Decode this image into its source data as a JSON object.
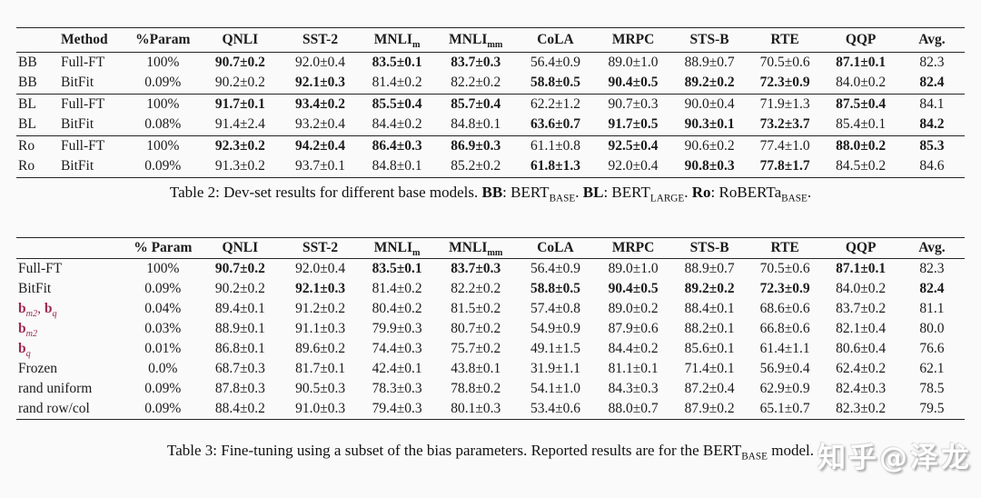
{
  "accent_red": "#9d2b52",
  "page_background": "#fafafa",
  "rule_color": "#242424",
  "watermark": {
    "text": "知乎@泽龙",
    "color": "#ffffff"
  },
  "table2": {
    "caption_parts": [
      {
        "t": "Table 2:  Dev-set results for different base models. "
      },
      {
        "t": "BB",
        "b": 1
      },
      {
        "t": ": BERT"
      },
      {
        "t": "BASE",
        "sub": 1
      },
      {
        "t": ". "
      },
      {
        "t": "BL",
        "b": 1
      },
      {
        "t": ": BERT"
      },
      {
        "t": "LARGE",
        "sub": 1
      },
      {
        "t": ". "
      },
      {
        "t": "Ro",
        "b": 1
      },
      {
        "t": ": RoBERTa"
      },
      {
        "t": "BASE",
        "sub": 1
      },
      {
        "t": "."
      }
    ],
    "columns": [
      {
        "t": ""
      },
      {
        "t": "Method"
      },
      {
        "t": "%Param"
      },
      {
        "t": "QNLI"
      },
      {
        "t": "SST-2"
      },
      {
        "t": "MNLI",
        "sub": "m"
      },
      {
        "t": "MNLI",
        "sub": "mm"
      },
      {
        "t": "CoLA"
      },
      {
        "t": "MRPC"
      },
      {
        "t": "STS-B"
      },
      {
        "t": "RTE"
      },
      {
        "t": "QQP"
      },
      {
        "t": "Avg."
      }
    ],
    "rows": [
      {
        "cells": [
          {
            "t": "BB"
          },
          {
            "t": "Full-FT"
          },
          {
            "t": "100%"
          },
          {
            "t": "90.7±0.2",
            "b": 1
          },
          {
            "t": "92.0±0.4"
          },
          {
            "t": "83.5±0.1",
            "b": 1
          },
          {
            "t": "83.7±0.3",
            "b": 1
          },
          {
            "t": "56.4±0.9"
          },
          {
            "t": "89.0±1.0"
          },
          {
            "t": "88.9±0.7"
          },
          {
            "t": "70.5±0.6"
          },
          {
            "t": "87.1±0.1",
            "b": 1
          },
          {
            "t": "82.3"
          }
        ]
      },
      {
        "cells": [
          {
            "t": "BB"
          },
          {
            "t": "BitFit"
          },
          {
            "t": "0.09%"
          },
          {
            "t": "90.2±0.2"
          },
          {
            "t": "92.1±0.3",
            "b": 1
          },
          {
            "t": "81.4±0.2"
          },
          {
            "t": "82.2±0.2"
          },
          {
            "t": "58.8±0.5",
            "b": 1
          },
          {
            "t": "90.4±0.5",
            "b": 1
          },
          {
            "t": "89.2±0.2",
            "b": 1
          },
          {
            "t": "72.3±0.9",
            "b": 1
          },
          {
            "t": "84.0±0.2"
          },
          {
            "t": "82.4",
            "b": 1
          }
        ]
      },
      {
        "sep": true,
        "cells": [
          {
            "t": "BL"
          },
          {
            "t": "Full-FT"
          },
          {
            "t": "100%"
          },
          {
            "t": "91.7±0.1",
            "b": 1
          },
          {
            "t": "93.4±0.2",
            "b": 1
          },
          {
            "t": "85.5±0.4",
            "b": 1
          },
          {
            "t": "85.7±0.4",
            "b": 1
          },
          {
            "t": "62.2±1.2"
          },
          {
            "t": "90.7±0.3"
          },
          {
            "t": "90.0±0.4"
          },
          {
            "t": "71.9±1.3"
          },
          {
            "t": "87.5±0.4",
            "b": 1
          },
          {
            "t": "84.1"
          }
        ]
      },
      {
        "cells": [
          {
            "t": "BL"
          },
          {
            "t": "BitFit"
          },
          {
            "t": "0.08%"
          },
          {
            "t": "91.4±2.4"
          },
          {
            "t": "93.2±0.4"
          },
          {
            "t": "84.4±0.2"
          },
          {
            "t": "84.8±0.1"
          },
          {
            "t": "63.6±0.7",
            "b": 1
          },
          {
            "t": "91.7±0.5",
            "b": 1
          },
          {
            "t": "90.3±0.1",
            "b": 1
          },
          {
            "t": "73.2±3.7",
            "b": 1
          },
          {
            "t": "85.4±0.1"
          },
          {
            "t": "84.2",
            "b": 1
          }
        ]
      },
      {
        "sep": true,
        "cells": [
          {
            "t": "Ro"
          },
          {
            "t": "Full-FT"
          },
          {
            "t": "100%"
          },
          {
            "t": "92.3±0.2",
            "b": 1
          },
          {
            "t": "94.2±0.4",
            "b": 1
          },
          {
            "t": "86.4±0.3",
            "b": 1
          },
          {
            "t": "86.9±0.3",
            "b": 1
          },
          {
            "t": "61.1±0.8"
          },
          {
            "t": "92.5±0.4",
            "b": 1
          },
          {
            "t": "90.6±0.2"
          },
          {
            "t": "77.4±1.0"
          },
          {
            "t": "88.0±0.2",
            "b": 1
          },
          {
            "t": "85.3",
            "b": 1
          }
        ]
      },
      {
        "cells": [
          {
            "t": "Ro"
          },
          {
            "t": "BitFit"
          },
          {
            "t": "0.09%"
          },
          {
            "t": "91.3±0.2"
          },
          {
            "t": "93.7±0.1"
          },
          {
            "t": "84.8±0.1"
          },
          {
            "t": "85.2±0.2"
          },
          {
            "t": "61.8±1.3",
            "b": 1
          },
          {
            "t": "92.0±0.4"
          },
          {
            "t": "90.8±0.3",
            "b": 1
          },
          {
            "t": "77.8±1.7",
            "b": 1
          },
          {
            "t": "84.5±0.2"
          },
          {
            "t": "84.6"
          }
        ]
      }
    ]
  },
  "table3": {
    "caption_parts": [
      {
        "t": "Table 3:  Fine-tuning using a subset of the bias parameters. Reported results are for the BERT"
      },
      {
        "t": "BASE",
        "sub": 1
      },
      {
        "t": " model."
      }
    ],
    "columns": [
      {
        "t": ""
      },
      {
        "t": "% Param"
      },
      {
        "t": "QNLI"
      },
      {
        "t": "SST-2"
      },
      {
        "t": "MNLI",
        "sub": "m"
      },
      {
        "t": "MNLI",
        "sub": "mm"
      },
      {
        "t": "CoLA"
      },
      {
        "t": "MRPC"
      },
      {
        "t": "STS-B"
      },
      {
        "t": "RTE"
      },
      {
        "t": "QQP"
      },
      {
        "t": "Avg."
      }
    ],
    "rows": [
      {
        "cells": [
          {
            "t": "Full-FT"
          },
          {
            "t": "100%"
          },
          {
            "t": "90.7±0.2",
            "b": 1
          },
          {
            "t": "92.0±0.4"
          },
          {
            "t": "83.5±0.1",
            "b": 1
          },
          {
            "t": "83.7±0.3",
            "b": 1
          },
          {
            "t": "56.4±0.9"
          },
          {
            "t": "89.0±1.0"
          },
          {
            "t": "88.9±0.7"
          },
          {
            "t": "70.5±0.6"
          },
          {
            "t": "87.1±0.1",
            "b": 1
          },
          {
            "t": "82.3"
          }
        ]
      },
      {
        "cells": [
          {
            "t": "BitFit"
          },
          {
            "t": "0.09%"
          },
          {
            "t": "90.2±0.2"
          },
          {
            "t": "92.1±0.3",
            "b": 1
          },
          {
            "t": "81.4±0.2"
          },
          {
            "t": "82.2±0.2"
          },
          {
            "t": "58.8±0.5",
            "b": 1
          },
          {
            "t": "90.4±0.5",
            "b": 1
          },
          {
            "t": "89.2±0.2",
            "b": 1
          },
          {
            "t": "72.3±0.9",
            "b": 1
          },
          {
            "t": "84.0±0.2"
          },
          {
            "t": "82.4",
            "b": 1
          }
        ]
      },
      {
        "cells": [
          {
            "parts": [
              {
                "t": "b",
                "b": 1,
                "red": 1
              },
              {
                "t": "m2",
                "sub": 1,
                "i": 1,
                "red": 1
              },
              {
                "t": ", ",
                "red": 1
              },
              {
                "t": "b",
                "b": 1,
                "red": 1
              },
              {
                "t": "q",
                "sub": 1,
                "i": 1,
                "red": 1
              }
            ]
          },
          {
            "t": "0.04%"
          },
          {
            "t": "89.4±0.1"
          },
          {
            "t": "91.2±0.2"
          },
          {
            "t": "80.4±0.2"
          },
          {
            "t": "81.5±0.2"
          },
          {
            "t": "57.4±0.8"
          },
          {
            "t": "89.0±0.2"
          },
          {
            "t": "88.4±0.1"
          },
          {
            "t": "68.6±0.6"
          },
          {
            "t": "83.7±0.2"
          },
          {
            "t": "81.1"
          }
        ]
      },
      {
        "cells": [
          {
            "parts": [
              {
                "t": "b",
                "b": 1,
                "red": 1
              },
              {
                "t": "m2",
                "sub": 1,
                "i": 1,
                "red": 1
              }
            ]
          },
          {
            "t": "0.03%"
          },
          {
            "t": "88.9±0.1"
          },
          {
            "t": "91.1±0.3"
          },
          {
            "t": "79.9±0.3"
          },
          {
            "t": "80.7±0.2"
          },
          {
            "t": "54.9±0.9"
          },
          {
            "t": "87.9±0.6"
          },
          {
            "t": "88.2±0.1"
          },
          {
            "t": "66.8±0.6"
          },
          {
            "t": "82.1±0.4"
          },
          {
            "t": "80.0"
          }
        ]
      },
      {
        "cells": [
          {
            "parts": [
              {
                "t": "b",
                "b": 1,
                "red": 1
              },
              {
                "t": "q",
                "sub": 1,
                "i": 1,
                "red": 1
              }
            ]
          },
          {
            "t": "0.01%"
          },
          {
            "t": "86.8±0.1"
          },
          {
            "t": "89.6±0.2"
          },
          {
            "t": "74.4±0.3"
          },
          {
            "t": "75.7±0.2"
          },
          {
            "t": "49.1±1.5"
          },
          {
            "t": "84.4±0.2"
          },
          {
            "t": "85.6±0.1"
          },
          {
            "t": "61.4±1.1"
          },
          {
            "t": "80.6±0.4"
          },
          {
            "t": "76.6"
          }
        ]
      },
      {
        "cells": [
          {
            "t": "Frozen"
          },
          {
            "t": "0.0%"
          },
          {
            "t": "68.7±0.3"
          },
          {
            "t": "81.7±0.1"
          },
          {
            "t": "42.4±0.1"
          },
          {
            "t": "43.8±0.1"
          },
          {
            "t": "31.9±1.1"
          },
          {
            "t": "81.1±0.1"
          },
          {
            "t": "71.4±0.1"
          },
          {
            "t": "56.9±0.4"
          },
          {
            "t": "62.4±0.2"
          },
          {
            "t": "62.1"
          }
        ]
      },
      {
        "cells": [
          {
            "t": "rand uniform"
          },
          {
            "t": "0.09%"
          },
          {
            "t": "87.8±0.3"
          },
          {
            "t": "90.5±0.3"
          },
          {
            "t": "78.3±0.3"
          },
          {
            "t": "78.8±0.2"
          },
          {
            "t": "54.1±1.0"
          },
          {
            "t": "84.3±0.3"
          },
          {
            "t": "87.2±0.4"
          },
          {
            "t": "62.9±0.9"
          },
          {
            "t": "82.4±0.3"
          },
          {
            "t": "78.5"
          }
        ]
      },
      {
        "cells": [
          {
            "t": "rand row/col"
          },
          {
            "t": "0.09%"
          },
          {
            "t": "88.4±0.2"
          },
          {
            "t": "91.0±0.3"
          },
          {
            "t": "79.4±0.3"
          },
          {
            "t": "80.1±0.3"
          },
          {
            "t": "53.4±0.6"
          },
          {
            "t": "88.0±0.7"
          },
          {
            "t": "87.9±0.2"
          },
          {
            "t": "65.1±0.7"
          },
          {
            "t": "82.3±0.2"
          },
          {
            "t": "79.5"
          }
        ]
      }
    ]
  }
}
